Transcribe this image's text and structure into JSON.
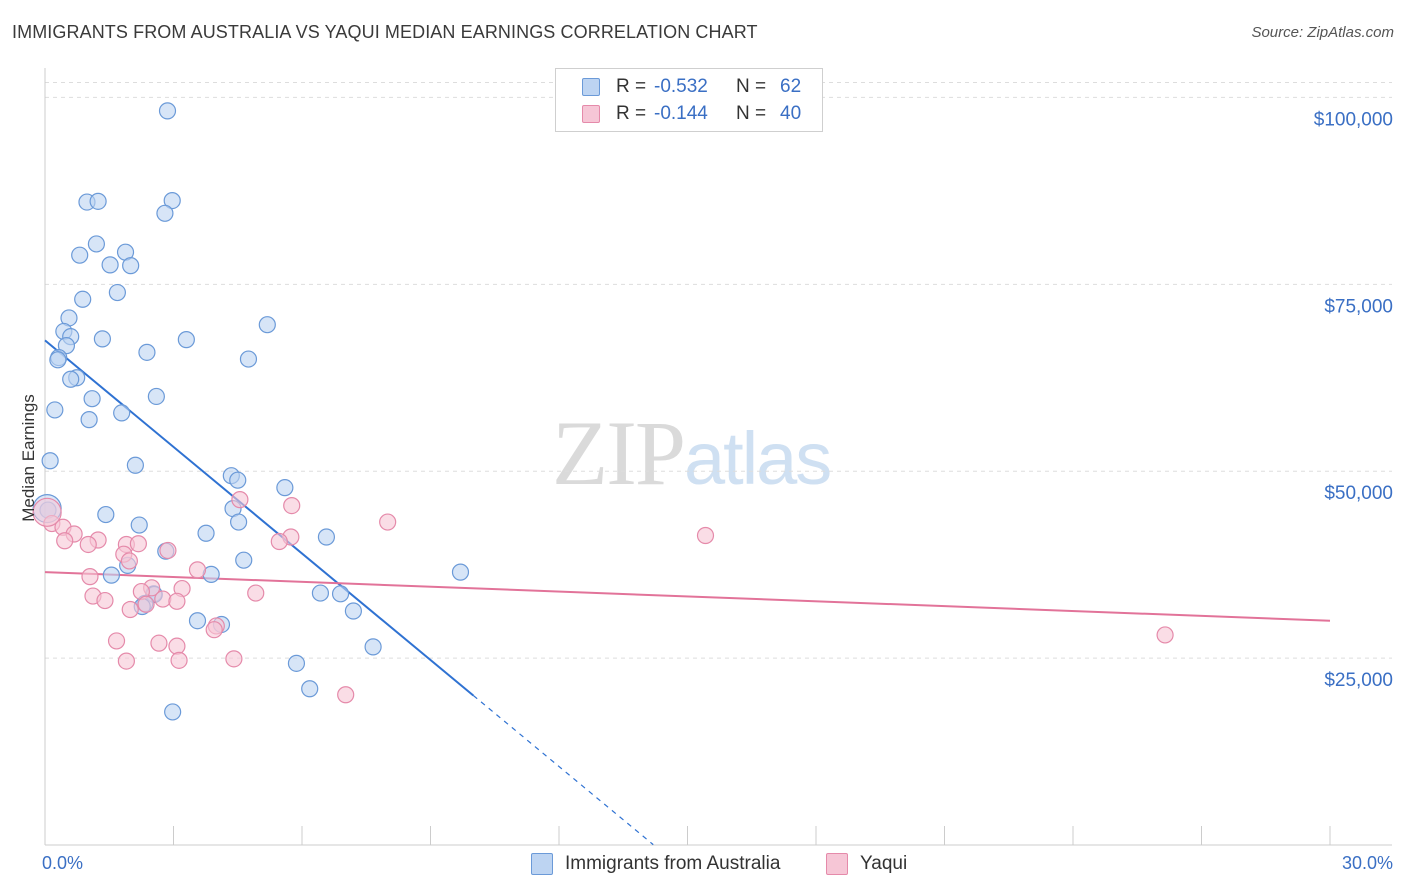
{
  "title": "IMMIGRANTS FROM AUSTRALIA VS YAQUI MEDIAN EARNINGS CORRELATION CHART",
  "source": "Source: ZipAtlas.com",
  "watermark": {
    "zip": "ZIP",
    "atlas": "atlas"
  },
  "colors": {
    "blue_fill": "#bdd4f2",
    "blue_stroke": "#6b9ad8",
    "blue_line": "#2f72d2",
    "pink_fill": "#f6c6d6",
    "pink_stroke": "#e58aaa",
    "pink_line": "#e27399",
    "grid": "#dddddd",
    "tick_text": "#3a6fc4"
  },
  "legend": {
    "rows": [
      {
        "r_label": "R =",
        "r_value": "-0.532",
        "n_label": "N =",
        "n_value": "62"
      },
      {
        "r_label": "R =",
        "r_value": "-0.144",
        "n_label": "N =",
        "n_value": "40"
      }
    ]
  },
  "bottom_legend": {
    "series1": "Immigrants from Australia",
    "series2": "Yaqui"
  },
  "chart_data": {
    "type": "scatter",
    "title": "IMMIGRANTS FROM AUSTRALIA VS YAQUI MEDIAN EARNINGS CORRELATION CHART",
    "xlabel": "",
    "ylabel": "Median Earnings",
    "xlim": [
      0,
      30
    ],
    "ylim": [
      0,
      103000
    ],
    "x_tick_labels": {
      "min": "0.0%",
      "max": "30.0%"
    },
    "y_ticks": [
      {
        "value": 25000,
        "label": "$25,000"
      },
      {
        "value": 50000,
        "label": "$50,000"
      },
      {
        "value": 75000,
        "label": "$75,000"
      },
      {
        "value": 100000,
        "label": "$100,000"
      }
    ],
    "series": [
      {
        "name": "Immigrants from Australia",
        "color": "blue",
        "r": -0.532,
        "n": 62,
        "trend": {
          "x0": 0,
          "y0": 67500,
          "x1": 10,
          "y1": 20000,
          "dash_to_x": 14.2
        },
        "points": [
          [
            2.86,
            98200
          ],
          [
            0.98,
            86000
          ],
          [
            1.24,
            86100
          ],
          [
            2.97,
            86200
          ],
          [
            2.8,
            84500
          ],
          [
            1.2,
            80400
          ],
          [
            0.81,
            78900
          ],
          [
            1.88,
            79300
          ],
          [
            1.52,
            77600
          ],
          [
            2.0,
            77500
          ],
          [
            1.69,
            73900
          ],
          [
            0.88,
            73000
          ],
          [
            0.56,
            70500
          ],
          [
            5.19,
            69600
          ],
          [
            0.44,
            68700
          ],
          [
            0.6,
            68000
          ],
          [
            1.34,
            67700
          ],
          [
            3.3,
            67600
          ],
          [
            0.5,
            66800
          ],
          [
            0.32,
            65200
          ],
          [
            2.38,
            65900
          ],
          [
            4.75,
            65000
          ],
          [
            0.3,
            64900
          ],
          [
            0.74,
            62500
          ],
          [
            0.6,
            62300
          ],
          [
            2.6,
            60000
          ],
          [
            1.1,
            59700
          ],
          [
            0.23,
            58200
          ],
          [
            1.79,
            57800
          ],
          [
            1.03,
            56900
          ],
          [
            0.12,
            51400
          ],
          [
            2.11,
            50800
          ],
          [
            4.35,
            49400
          ],
          [
            4.5,
            48800
          ],
          [
            5.6,
            47800
          ],
          [
            4.39,
            45000
          ],
          [
            0.07,
            44800
          ],
          [
            1.42,
            44200
          ],
          [
            4.52,
            43200
          ],
          [
            2.2,
            42800
          ],
          [
            3.76,
            41700
          ],
          [
            6.57,
            41200
          ],
          [
            2.82,
            39300
          ],
          [
            4.64,
            38100
          ],
          [
            1.93,
            37400
          ],
          [
            9.7,
            36500
          ],
          [
            1.55,
            36100
          ],
          [
            3.88,
            36200
          ],
          [
            2.54,
            33600
          ],
          [
            6.43,
            33700
          ],
          [
            6.9,
            33600
          ],
          [
            2.55,
            33500
          ],
          [
            2.33,
            32300
          ],
          [
            2.27,
            31900
          ],
          [
            7.2,
            31300
          ],
          [
            3.56,
            30000
          ],
          [
            4.12,
            29500
          ],
          [
            7.66,
            26500
          ],
          [
            5.87,
            24300
          ],
          [
            6.18,
            20900
          ],
          [
            2.98,
            17800
          ],
          [
            0.05,
            45000
          ]
        ]
      },
      {
        "name": "Yaqui",
        "color": "pink",
        "r": -0.144,
        "n": 40,
        "trend": {
          "x0": 0,
          "y0": 36500,
          "x1": 30,
          "y1": 30000
        },
        "points": [
          [
            0.16,
            43000
          ],
          [
            0.42,
            42500
          ],
          [
            0.68,
            41600
          ],
          [
            5.76,
            45400
          ],
          [
            4.55,
            46200
          ],
          [
            8.0,
            43200
          ],
          [
            15.42,
            41400
          ],
          [
            5.74,
            41200
          ],
          [
            0.46,
            40700
          ],
          [
            1.24,
            40800
          ],
          [
            1.9,
            40200
          ],
          [
            5.47,
            40600
          ],
          [
            2.18,
            40300
          ],
          [
            1.01,
            40200
          ],
          [
            2.87,
            39400
          ],
          [
            1.84,
            38900
          ],
          [
            1.97,
            38000
          ],
          [
            3.56,
            36800
          ],
          [
            1.05,
            35900
          ],
          [
            2.49,
            34400
          ],
          [
            3.2,
            34300
          ],
          [
            2.25,
            33900
          ],
          [
            4.92,
            33700
          ],
          [
            1.12,
            33300
          ],
          [
            1.4,
            32700
          ],
          [
            2.75,
            32900
          ],
          [
            3.08,
            32600
          ],
          [
            2.36,
            32200
          ],
          [
            1.99,
            31500
          ],
          [
            4.0,
            29300
          ],
          [
            3.95,
            28800
          ],
          [
            26.15,
            28100
          ],
          [
            1.67,
            27300
          ],
          [
            2.66,
            27000
          ],
          [
            3.08,
            26600
          ],
          [
            1.9,
            24600
          ],
          [
            3.13,
            24700
          ],
          [
            4.41,
            24900
          ],
          [
            7.02,
            20100
          ],
          [
            0.05,
            44500
          ]
        ]
      }
    ]
  }
}
